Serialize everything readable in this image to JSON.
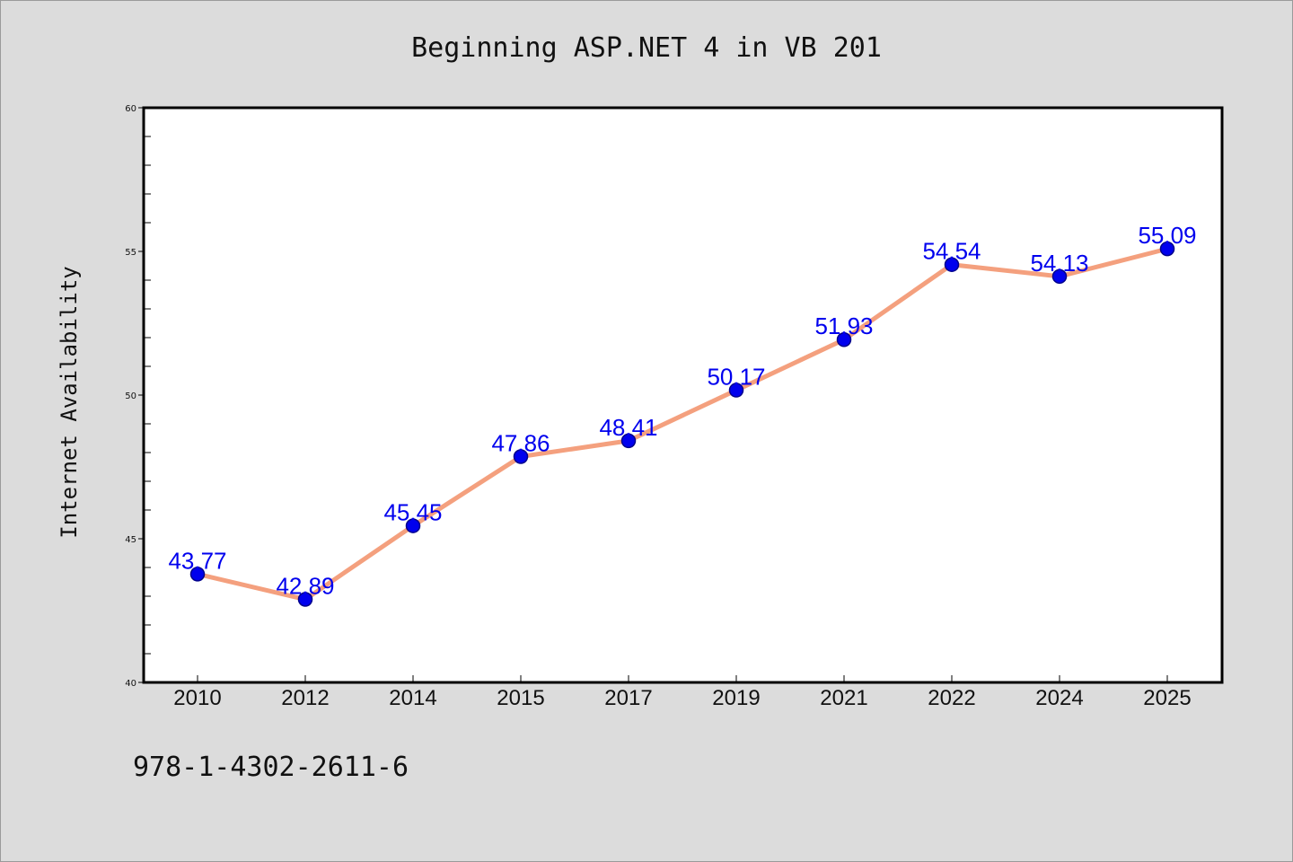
{
  "chart_data": {
    "type": "line",
    "title": "Beginning ASP.NET 4 in VB 201",
    "xlabel": "",
    "ylabel": "Internet Availability",
    "categories": [
      "2010",
      "2012",
      "2014",
      "2015",
      "2017",
      "2019",
      "2021",
      "2022",
      "2024",
      "2025"
    ],
    "series": [
      {
        "values": [
          43.77,
          42.89,
          45.45,
          47.86,
          48.41,
          50.17,
          51.93,
          54.54,
          54.13,
          55.09
        ],
        "data_labels": [
          "43.77",
          "42.89",
          "45.45",
          "47.86",
          "48.41",
          "50.17",
          "51.93",
          "54.54",
          "54.13",
          "55.09"
        ]
      }
    ],
    "ylim": [
      40,
      60
    ],
    "yticks": [
      "40",
      "45",
      "50",
      "55",
      "60"
    ],
    "grid": false,
    "colors": {
      "line": "#f4a07e",
      "marker": "#0000ee",
      "marker_edge": "#00008b",
      "data_label": "#0000ee",
      "background": "#dcdcdc",
      "plot_background": "#ffffff"
    }
  },
  "footer": {
    "isbn": "978-1-4302-2611-6"
  }
}
